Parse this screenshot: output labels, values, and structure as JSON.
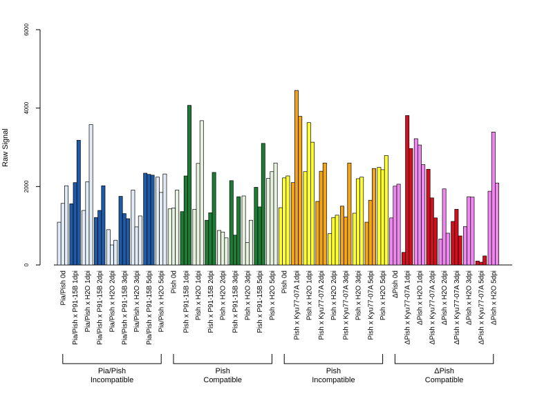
{
  "chart_data": {
    "type": "bar",
    "ylabel": "Raw Signal",
    "ylim": [
      0,
      6000
    ],
    "yticks": [
      "0",
      "2000",
      "4000",
      "6000"
    ],
    "replicates_per_category": 3,
    "categories": [
      "Pia/Pish 0d",
      "Pia/Pish x P91-15B 1dpi",
      "Pia/Pish x H2O 1dpi",
      "Pia/Pish x P91-15B 2dpi",
      "Pia/Pish x H2O 2dpi",
      "Pia/Pish x P91-15B 3dpi",
      "Pia/Pish x H2O 3dpi",
      "Pia/Pish x P91-15B 5dpi",
      "Pia/Pish x H2O 5dpi",
      "Pish 0d",
      "Pish x P91-15B 1dpi",
      "Pish x H2O 1dpi",
      "Pish x P91-15B 2dpi",
      "Pish x H2O 2dpi",
      "Pish x P91-15B 3dpi",
      "Pish x H2O 3dpi",
      "Pish x P91-15B 5dpi",
      "Pish x H2O 5dpi",
      "Pish 0d",
      "Pish x Kyu77-07A 1dpi",
      "Pish x H2O 1dpi",
      "Pish x Kyu77-07A 2dpi",
      "Pish x H2O 2dpi",
      "Pish x Kyu77-07A 3dpi",
      "Pish x H2O 3dpi",
      "Pish x Kyu77-07A 5dpi",
      "Pish x H2O 5dpi",
      "ΔPish 0d",
      "ΔPish x Kyu77-07A 1dpi",
      "ΔPish x H2O 1dpi",
      "ΔPish x Kyu77-07A 2dpi",
      "ΔPish x H2O 2dpi",
      "ΔPish x Kyu77-07A 3dpi",
      "ΔPish x H2O 3dpi",
      "ΔPish x Kyu77-07A 5dpi",
      "ΔPish x H2O 5dpi"
    ],
    "values": [
      [
        1090,
        1570,
        2020
      ],
      [
        1560,
        2100,
        3180
      ],
      [
        1390,
        2120,
        3580
      ],
      [
        1210,
        1390,
        2020
      ],
      [
        900,
        510,
        630
      ],
      [
        1750,
        1310,
        1180
      ],
      [
        1910,
        970,
        1250
      ],
      [
        2340,
        2310,
        2290
      ],
      [
        2240,
        1850,
        2320
      ],
      [
        1430,
        1450,
        1910
      ],
      [
        1360,
        2270,
        4070
      ],
      [
        1420,
        2590,
        3680
      ],
      [
        1140,
        1330,
        2360
      ],
      [
        880,
        840,
        690
      ],
      [
        2150,
        760,
        1740
      ],
      [
        1760,
        570,
        1140
      ],
      [
        1980,
        1480,
        3100
      ],
      [
        2210,
        2380,
        2600
      ],
      [
        1460,
        2220,
        2270
      ],
      [
        2100,
        4450,
        3790
      ],
      [
        2380,
        3630,
        3130
      ],
      [
        1620,
        2390,
        2600
      ],
      [
        800,
        1210,
        1270
      ],
      [
        1500,
        1220,
        2600
      ],
      [
        1320,
        2200,
        2240
      ],
      [
        1090,
        1650,
        2460
      ],
      [
        2490,
        2430,
        2790
      ],
      [
        1200,
        2010,
        2060
      ],
      [
        320,
        3810,
        2970
      ],
      [
        3220,
        3060,
        2560
      ],
      [
        2440,
        1710,
        1200
      ],
      [
        660,
        1940,
        810
      ],
      [
        1110,
        1420,
        740
      ],
      [
        980,
        1740,
        1730
      ],
      [
        100,
        70,
        230
      ],
      [
        1880,
        3390,
        2090
      ]
    ],
    "bar_colors": [
      "#e2ecf7",
      "#1f5aa6",
      "#e2ecf7",
      "#1f5aa6",
      "#e2ecf7",
      "#1f5aa6",
      "#e2ecf7",
      "#1f5aa6",
      "#e2ecf7",
      "#e6f1e0",
      "#1e7b35",
      "#e6f1e0",
      "#1e7b35",
      "#e6f1e0",
      "#1e7b35",
      "#e6f1e0",
      "#1e7b35",
      "#e6f1e0",
      "#ffff33",
      "#f2a516",
      "#ffff33",
      "#f2a516",
      "#ffff33",
      "#f2a516",
      "#ffff33",
      "#f2a516",
      "#ffff33",
      "#ee88ee",
      "#d0101e",
      "#ee88ee",
      "#d0101e",
      "#ee88ee",
      "#d0101e",
      "#ee88ee",
      "#d0101e",
      "#ee88ee"
    ],
    "groups": [
      {
        "line1": "Pia/Pish",
        "line2": "Incompatible"
      },
      {
        "line1": "Pish",
        "line2": "Compatible"
      },
      {
        "line1": "Pish",
        "line2": "Incompatible"
      },
      {
        "line1": "ΔPish",
        "line2": "Compatible"
      }
    ]
  }
}
